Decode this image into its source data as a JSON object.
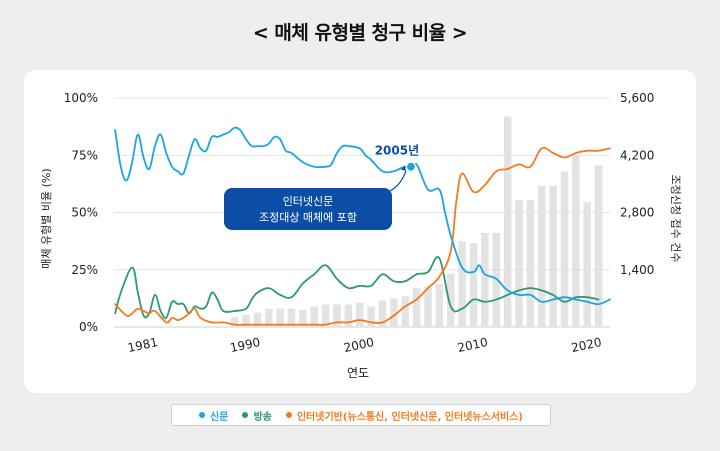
{
  "title": "< 매체 유형별 청구 비율 >",
  "colors": {
    "newspaper": "#1aa4e8",
    "broadcast": "#2b9a6e",
    "internet": "#f47a20",
    "bars": "#e3e3e3",
    "annotation_bg": "#0c4ea6"
  },
  "chart_data": {
    "type": "line",
    "xlabel": "연도",
    "ylabel_left": "매체 유형별 비율 (%)",
    "ylabel_right": "조정신청 접수 건수",
    "x_range": [
      1978.4,
      2022
    ],
    "x_ticks": [
      1981,
      1990,
      2000,
      2010,
      2020
    ],
    "y_left_range": [
      0,
      100
    ],
    "y_left_ticks": [
      "0%",
      "25%",
      "50%",
      "75%",
      "100%"
    ],
    "y_right_range": [
      0,
      5600
    ],
    "y_right_ticks": [
      "1,400",
      "2,800",
      "4,200",
      "5,600"
    ],
    "grid": true,
    "legend_position": "bottom",
    "bars": {
      "years": [
        1989,
        1990,
        1991,
        1992,
        1993,
        1994,
        1995,
        1996,
        1997,
        1998,
        1999,
        2000,
        2001,
        2002,
        2003,
        2004,
        2005,
        2006,
        2007,
        2008,
        2009,
        2010,
        2011,
        2012,
        2013,
        2014,
        2015,
        2016,
        2017,
        2018,
        2019,
        2020,
        2021
      ],
      "values": [
        250,
        300,
        350,
        450,
        450,
        450,
        420,
        500,
        550,
        550,
        550,
        600,
        500,
        650,
        700,
        750,
        950,
        1000,
        1050,
        1300,
        2100,
        2050,
        2300,
        2300,
        5150,
        3100,
        3100,
        3450,
        3450,
        3800,
        4200,
        3050,
        3950
      ]
    },
    "series": [
      {
        "name": "신문",
        "x": [
          1978.5,
          1979,
          1979.5,
          1980,
          1980.5,
          1981,
          1981.5,
          1982,
          1982.5,
          1983,
          1983.5,
          1984,
          1984.5,
          1985,
          1985.5,
          1986,
          1986.5,
          1987,
          1987.5,
          1988,
          1988.5,
          1989,
          1989.5,
          1990,
          1990.5,
          1991,
          1991.5,
          1992,
          1992.5,
          1993,
          1993.5,
          1994,
          1995,
          1996,
          1997,
          1997.5,
          1998,
          1998.5,
          1999,
          2000,
          2000.5,
          2001,
          2002,
          2003,
          2004,
          2004.5,
          2005,
          2006,
          2007,
          2007.5,
          2008,
          2009,
          2010,
          2010.5,
          2011,
          2012,
          2013,
          2014,
          2015,
          2016,
          2017,
          2018,
          2019,
          2020,
          2021,
          2022
        ],
        "values": [
          86,
          70,
          64,
          72,
          84,
          74,
          69,
          79,
          84,
          76,
          70,
          68,
          67,
          75,
          82,
          78,
          77,
          83,
          83,
          84,
          85,
          87,
          86,
          82,
          79,
          79,
          79,
          80,
          83,
          82,
          77,
          76,
          72,
          70,
          70,
          71,
          76,
          79,
          79,
          78,
          75,
          73,
          68,
          68,
          70,
          68,
          71,
          60,
          60,
          50,
          40,
          26,
          24,
          27,
          23,
          21,
          16,
          14,
          14,
          11,
          12,
          13,
          12,
          11,
          10,
          12
        ]
      },
      {
        "name": "방송",
        "x": [
          1978.5,
          1979,
          1980,
          1980.5,
          1981,
          1981.5,
          1982,
          1982.5,
          1983,
          1983.5,
          1984,
          1984.5,
          1985,
          1985.5,
          1986,
          1986.5,
          1987,
          1987.5,
          1988,
          1989,
          1990,
          1990.5,
          1991,
          1992,
          1993,
          1994,
          1995,
          1996,
          1997,
          1998,
          1999,
          2000,
          2001,
          2002,
          2003,
          2004,
          2005,
          2006,
          2007,
          2008,
          2009,
          2010,
          2011,
          2012,
          2013,
          2014,
          2015,
          2016,
          2017,
          2018,
          2019,
          2020,
          2021
        ],
        "values": [
          6,
          15,
          26,
          15,
          5,
          6,
          14,
          7,
          4,
          11,
          10,
          10,
          6,
          9,
          8,
          9,
          15,
          12,
          7,
          7,
          8,
          12,
          15,
          17,
          14,
          13,
          19,
          23,
          27,
          21,
          17,
          18,
          18,
          23,
          20,
          20,
          23,
          24,
          30,
          9,
          8,
          12,
          11,
          12,
          14,
          16,
          17,
          16,
          14,
          11,
          13,
          13,
          12
        ]
      },
      {
        "name": "인터넷기반(뉴스통신, 인터넷신문, 인터넷뉴스서비스)",
        "x": [
          1978.5,
          1979.5,
          1980,
          1980.5,
          1981,
          1981.5,
          1982,
          1983,
          1983.5,
          1984,
          1984.5,
          1985,
          1985.5,
          1986,
          1987,
          1988,
          1989,
          1990,
          1991,
          1992,
          1993,
          1994,
          1995,
          1996,
          1997,
          1998,
          1999,
          2000,
          2001,
          2002,
          2003,
          2004,
          2005,
          2006,
          2007,
          2008,
          2008.5,
          2009,
          2010,
          2011,
          2012,
          2013,
          2014,
          2015,
          2016,
          2017,
          2018,
          2019,
          2020,
          2021,
          2022
        ],
        "values": [
          10,
          5,
          6,
          8,
          7,
          6,
          7,
          2,
          4,
          3,
          4,
          6,
          8,
          4,
          2,
          2,
          1,
          1,
          1,
          1,
          1,
          1,
          1,
          1,
          1,
          2,
          2,
          3,
          2,
          2,
          5,
          9,
          12,
          17,
          22,
          33,
          55,
          67,
          59,
          62,
          68,
          69,
          71,
          70,
          78,
          76,
          74,
          76,
          77,
          77,
          78
        ]
      }
    ],
    "annotations": [
      {
        "label": "2005년",
        "x": 2004.5,
        "series": "신문",
        "value": 70
      },
      {
        "label": "인터넷신문",
        "label2": "조정대상 매체에 포함"
      }
    ]
  },
  "legend": [
    {
      "key": "newspaper",
      "label": "신문"
    },
    {
      "key": "broadcast",
      "label": "방송"
    },
    {
      "key": "internet",
      "label": "인터넷기반(뉴스통신, 인터넷신문, 인터넷뉴스서비스)"
    }
  ]
}
